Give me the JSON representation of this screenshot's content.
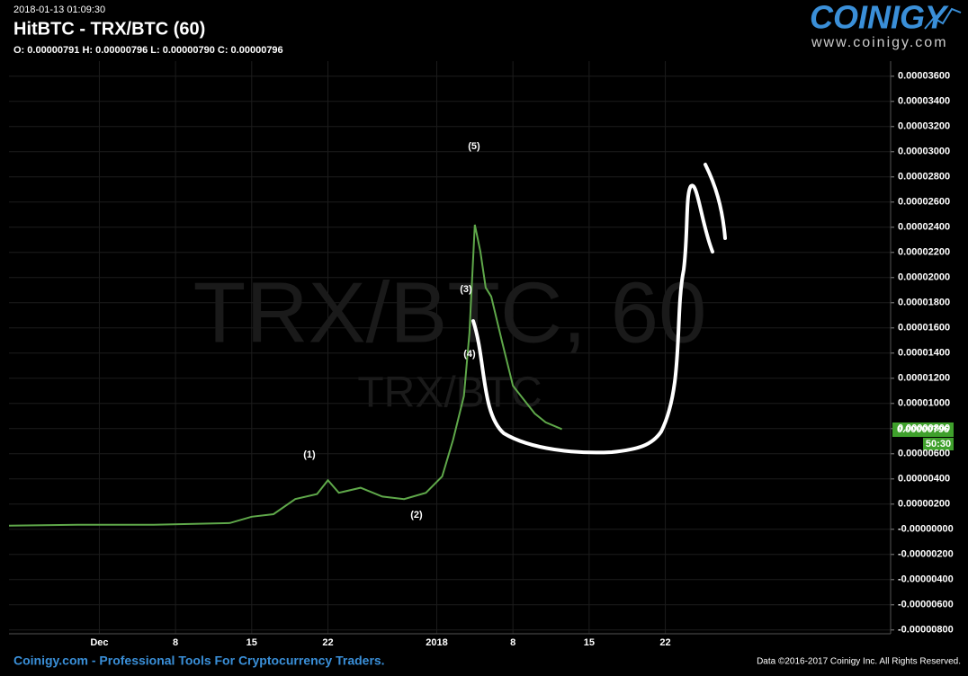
{
  "timestamp": "2018-01-13 01:09:30",
  "ohlc_text": "O: 0.00000791 H: 0.00000796 L: 0.00000790 C: 0.00000796",
  "logo": {
    "name": "COINIGY",
    "url": "www.coinigy.com"
  },
  "watermark": {
    "main": "TRX/BTC, 60",
    "sub": "TRX/BTC"
  },
  "footer": {
    "left": "Coinigy.com - Professional Tools For Cryptocurrency Traders.",
    "right": "Data ©2016-2017 Coinigy Inc. All Rights Reserved."
  },
  "chart_data": {
    "type": "line",
    "title": "HitBTC - TRX/BTC (60)",
    "color": "#5fa84a",
    "x": [
      -8.3,
      -2,
      5,
      12,
      14,
      16,
      18,
      20,
      21,
      22,
      24,
      26,
      28,
      30,
      31.5,
      32.5,
      33.5,
      34,
      34.5,
      35,
      35.5,
      36,
      37,
      38,
      39,
      40,
      41,
      42.5
    ],
    "values": [
      2.9e-07,
      3.6e-07,
      3.6e-07,
      5e-07,
      1e-06,
      1.2e-06,
      2.4e-06,
      2.8e-06,
      3.9e-06,
      2.9e-06,
      3.3e-06,
      2.6e-06,
      2.4e-06,
      2.9e-06,
      4.2e-06,
      7.1e-06,
      1.06e-05,
      1.56e-05,
      2.42e-05,
      2.21e-05,
      1.92e-05,
      1.85e-05,
      1.49e-05,
      1.14e-05,
      1.03e-05,
      9.2e-06,
      8.5e-06,
      7.96e-06
    ],
    "annotations": [
      "(1)",
      "(2)",
      "(3)",
      "(4)",
      "(5)"
    ],
    "last_price": "0.00000796",
    "countdown": "50:30",
    "xlim": [
      -8.3,
      72.7
    ],
    "xticks": [
      {
        "value": 0,
        "label": "Dec"
      },
      {
        "value": 7,
        "label": "8"
      },
      {
        "value": 14,
        "label": "15"
      },
      {
        "value": 21,
        "label": "22"
      },
      {
        "value": 31,
        "label": "2018"
      },
      {
        "value": 38,
        "label": "8"
      },
      {
        "value": 45,
        "label": "15"
      },
      {
        "value": 52,
        "label": "22"
      }
    ],
    "ylim": [
      -8.3e-06,
      3.72e-05
    ],
    "yticks": [
      {
        "value": 3.6e-05,
        "label": "0.00003600"
      },
      {
        "value": 3.4e-05,
        "label": "0.00003400"
      },
      {
        "value": 3.2e-05,
        "label": "0.00003200"
      },
      {
        "value": 3e-05,
        "label": "0.00003000"
      },
      {
        "value": 2.8e-05,
        "label": "0.00002800"
      },
      {
        "value": 2.6e-05,
        "label": "0.00002600"
      },
      {
        "value": 2.4e-05,
        "label": "0.00002400"
      },
      {
        "value": 2.2e-05,
        "label": "0.00002200"
      },
      {
        "value": 2e-05,
        "label": "0.00002000"
      },
      {
        "value": 1.8e-05,
        "label": "0.00001800"
      },
      {
        "value": 1.6e-05,
        "label": "0.00001600"
      },
      {
        "value": 1.4e-05,
        "label": "0.00001400"
      },
      {
        "value": 1.2e-05,
        "label": "0.00001200"
      },
      {
        "value": 1e-05,
        "label": "0.00001000"
      },
      {
        "value": 8e-06,
        "label": "0.00000800"
      },
      {
        "value": 6e-06,
        "label": "0.00000600"
      },
      {
        "value": 4e-06,
        "label": "0.00000400"
      },
      {
        "value": 2e-06,
        "label": "0.00000200"
      },
      {
        "value": 0,
        "label": "-0.00000000"
      },
      {
        "value": -2e-06,
        "label": "-0.00000200"
      },
      {
        "value": -4e-06,
        "label": "-0.00000400"
      },
      {
        "value": -6e-06,
        "label": "-0.00000600"
      },
      {
        "value": -8e-06,
        "label": "-0.00000800"
      }
    ],
    "grid": true
  }
}
